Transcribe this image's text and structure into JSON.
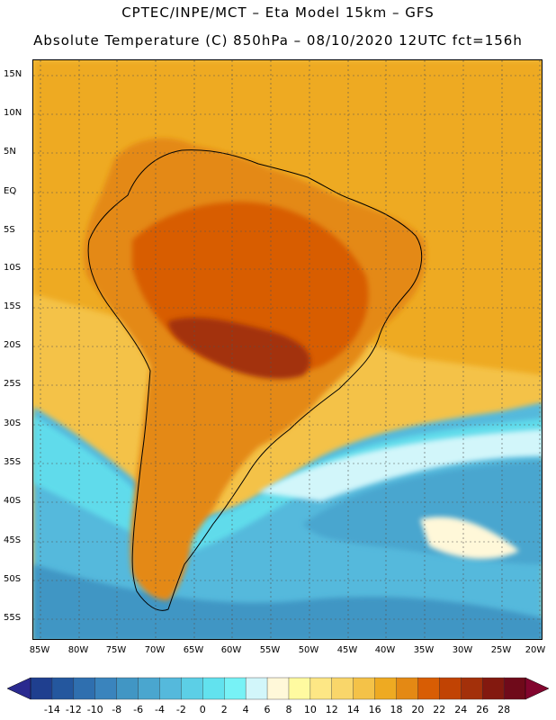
{
  "header": {
    "line1": "CPTEC/INPE/MCT –  Eta Model 15km – GFS",
    "line2": "Absolute Temperature (C) 850hPa – 08/10/2020 12UTC fct=156h"
  },
  "map": {
    "lat_labels": [
      "15N",
      "10N",
      "5N",
      "EQ",
      "5S",
      "10S",
      "15S",
      "20S",
      "25S",
      "30S",
      "35S",
      "40S",
      "45S",
      "50S",
      "55S"
    ],
    "lon_labels": [
      "85W",
      "80W",
      "75W",
      "70W",
      "65W",
      "60W",
      "55W",
      "50W",
      "45W",
      "40W",
      "35W",
      "30W",
      "25W",
      "20W"
    ]
  },
  "colorbar": {
    "levels": [
      "-14",
      "-12",
      "-10",
      "-8",
      "-6",
      "-4",
      "-2",
      "0",
      "2",
      "4",
      "6",
      "8",
      "10",
      "12",
      "14",
      "16",
      "18",
      "20",
      "22",
      "24",
      "26",
      "28"
    ],
    "colors": [
      "#1f3f8f",
      "#24579e",
      "#2f6faf",
      "#3a84bd",
      "#4196c4",
      "#4aa6cf",
      "#55b9dc",
      "#5ccfe6",
      "#62e2ee",
      "#77f2f6",
      "#d2f6fa",
      "#fff8d9",
      "#fffaa0",
      "#fde785",
      "#f9d66a",
      "#f4c248",
      "#eeaa22",
      "#e48914",
      "#d85d04",
      "#c14303",
      "#a3300a",
      "#83190f",
      "#6f0a1a"
    ],
    "low_color": "#2a2a8f",
    "high_color": "#82052e"
  }
}
